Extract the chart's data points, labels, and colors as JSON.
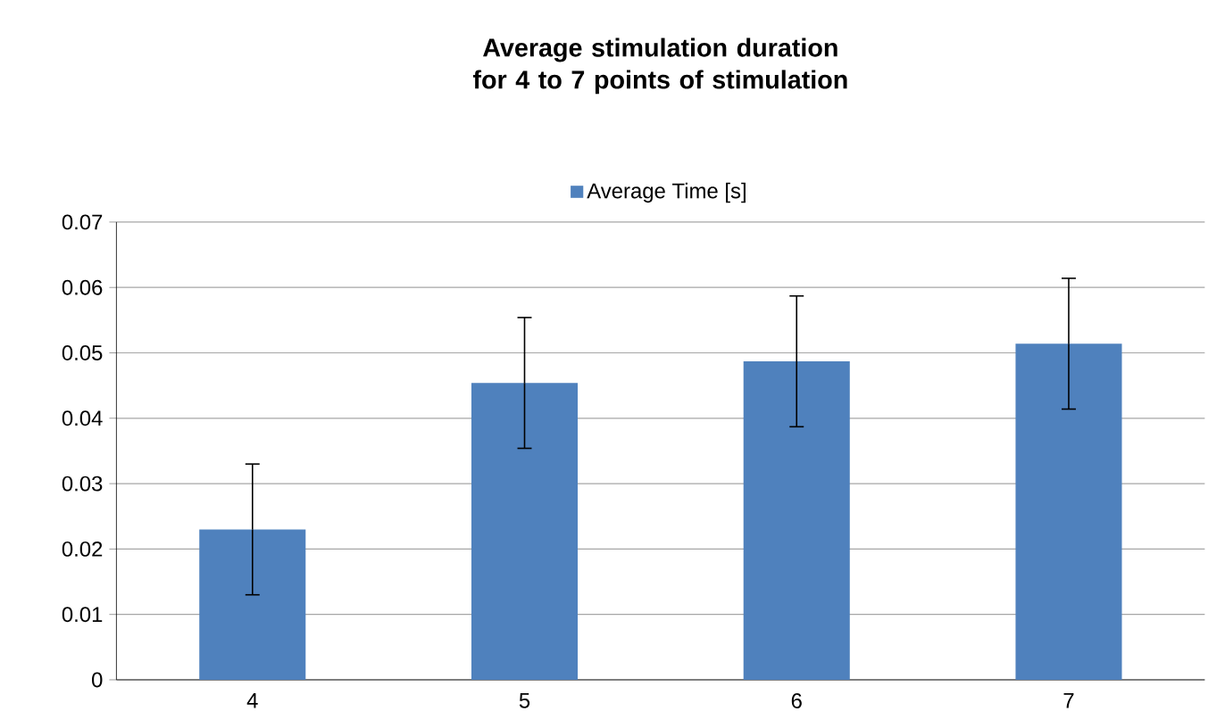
{
  "chart_data": {
    "type": "bar",
    "title": "Average stimulation duration for 4 to 7 points of stimulation",
    "categories": [
      "4",
      "5",
      "6",
      "7"
    ],
    "series": [
      {
        "name": "Average Time [s]",
        "color": "#4f81bd",
        "values": [
          0.023,
          0.0454,
          0.0487,
          0.0514
        ],
        "errors": [
          0.01,
          0.01,
          0.01,
          0.01
        ]
      }
    ],
    "ylim": [
      0,
      0.07
    ],
    "yticks": [
      0,
      0.01,
      0.02,
      0.03,
      0.04,
      0.05,
      0.06,
      0.07
    ],
    "grid": "y",
    "legend": "top"
  }
}
